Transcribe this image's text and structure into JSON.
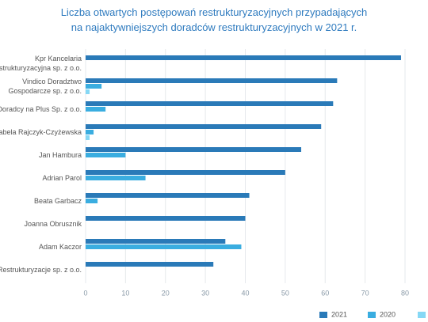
{
  "chart_data": {
    "type": "bar",
    "orientation": "horizontal",
    "title": "Liczba otwartych postępowań restrukturyzacyjnych przypadających\nna najaktywniejszych doradców restrukturyzacyjnych w 2021 r.",
    "categories": [
      "Kpr Kancelaria\nRestrukturyzacyjna sp. z o.o.",
      "Vindico Doradztwo\nGospodarcze sp. z o.o.",
      "Doradcy na Plus Sp. z o.o.",
      "Izabela Rajczyk-Czyżewska",
      "Jan Hambura",
      "Adrian Parol",
      "Beata Garbacz",
      "Joanna Obrusznik",
      "Adam Kaczor",
      "F Restrukturyzacje sp. z o.o."
    ],
    "series": [
      {
        "name": "2021",
        "color": "#2a7ab8",
        "values": [
          79,
          63,
          62,
          59,
          54,
          50,
          41,
          40,
          35,
          32
        ]
      },
      {
        "name": "2020",
        "color": "#3aade0",
        "values": [
          null,
          4,
          5,
          2,
          10,
          15,
          3,
          null,
          39,
          null
        ]
      },
      {
        "color": "#86d8f5",
        "values": [
          null,
          1,
          null,
          1,
          null,
          null,
          null,
          null,
          null,
          null
        ]
      }
    ],
    "xlim": [
      0,
      80
    ],
    "xticks": [
      0,
      10,
      20,
      30,
      40,
      50,
      60,
      70,
      80
    ],
    "grid": true
  }
}
